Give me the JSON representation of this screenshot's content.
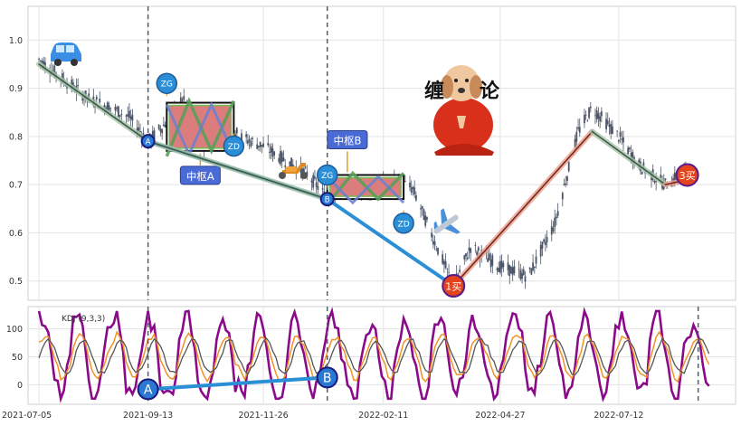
{
  "chart_data": [
    {
      "type": "candlestick",
      "title": "",
      "xlabel": "",
      "ylabel": "",
      "ylim": [
        0.46,
        1.07
      ],
      "y_ticks": [
        "0.5",
        "0.6",
        "0.7",
        "0.8",
        "0.9",
        "1.0"
      ],
      "x_tick_labels": [
        "2021-07-05",
        "2021-09-13",
        "2021-11-26",
        "2022-02-11",
        "2022-04-27",
        "2022-07-12"
      ],
      "x_range": [
        "2021-06-28",
        "2022-09-25"
      ],
      "grid": true,
      "price_path": [
        {
          "date": "2021-07-05",
          "value": 0.96
        },
        {
          "date": "2021-07-20",
          "value": 0.92
        },
        {
          "date": "2021-08-05",
          "value": 0.88
        },
        {
          "date": "2021-08-20",
          "value": 0.86
        },
        {
          "date": "2021-09-01",
          "value": 0.84
        },
        {
          "date": "2021-09-13",
          "value": 0.79
        },
        {
          "date": "2021-09-25",
          "value": 0.83
        },
        {
          "date": "2021-10-05",
          "value": 0.88
        },
        {
          "date": "2021-10-18",
          "value": 0.78
        },
        {
          "date": "2021-10-30",
          "value": 0.86
        },
        {
          "date": "2021-11-10",
          "value": 0.8
        },
        {
          "date": "2021-11-26",
          "value": 0.78
        },
        {
          "date": "2021-12-10",
          "value": 0.75
        },
        {
          "date": "2021-12-25",
          "value": 0.72
        },
        {
          "date": "2022-01-06",
          "value": 0.67
        },
        {
          "date": "2022-01-18",
          "value": 0.7
        },
        {
          "date": "2022-01-30",
          "value": 0.69
        },
        {
          "date": "2022-02-11",
          "value": 0.7
        },
        {
          "date": "2022-02-20",
          "value": 0.71
        },
        {
          "date": "2022-03-02",
          "value": 0.69
        },
        {
          "date": "2022-03-20",
          "value": 0.55
        },
        {
          "date": "2022-03-28",
          "value": 0.49
        },
        {
          "date": "2022-04-08",
          "value": 0.57
        },
        {
          "date": "2022-04-27",
          "value": 0.53
        },
        {
          "date": "2022-05-15",
          "value": 0.51
        },
        {
          "date": "2022-06-01",
          "value": 0.62
        },
        {
          "date": "2022-06-16",
          "value": 0.81
        },
        {
          "date": "2022-06-25",
          "value": 0.86
        },
        {
          "date": "2022-07-12",
          "value": 0.8
        },
        {
          "date": "2022-07-25",
          "value": 0.74
        },
        {
          "date": "2022-08-11",
          "value": 0.7
        },
        {
          "date": "2022-08-25",
          "value": 0.73
        }
      ],
      "bi_strokes": [
        {
          "from": {
            "date": "2021-07-05",
            "value": 0.95
          },
          "to": {
            "date": "2021-09-13",
            "value": 0.79
          }
        },
        {
          "from": {
            "date": "2021-09-13",
            "value": 0.79
          },
          "to": {
            "date": "2022-01-06",
            "value": 0.67
          }
        },
        {
          "from": {
            "date": "2022-03-28",
            "value": 0.49
          },
          "to": {
            "date": "2022-06-25",
            "value": 0.81
          }
        },
        {
          "from": {
            "date": "2022-06-25",
            "value": 0.81
          },
          "to": {
            "date": "2022-08-11",
            "value": 0.7
          }
        },
        {
          "from": {
            "date": "2022-08-11",
            "value": 0.7
          },
          "to": {
            "date": "2022-08-25",
            "value": 0.71
          }
        }
      ],
      "segment_strokes": [
        {
          "from": {
            "date": "2021-09-13",
            "value": 0.79
          },
          "to": {
            "date": "2022-01-06",
            "value": 0.67
          }
        },
        {
          "from": {
            "date": "2022-01-06",
            "value": 0.67
          },
          "to": {
            "date": "2022-03-28",
            "value": 0.49
          }
        }
      ],
      "zhongshu": [
        {
          "label": "中枢A",
          "start": "2021-09-25",
          "end": "2021-11-07",
          "zg": 0.87,
          "zd": 0.77
        },
        {
          "label": "中枢B",
          "start": "2022-01-06",
          "end": "2022-02-24",
          "zg": 0.72,
          "zd": 0.67
        }
      ],
      "markers": [
        {
          "text": "ZG",
          "date": "2021-09-25",
          "value": 0.91
        },
        {
          "text": "ZD",
          "date": "2021-11-07",
          "value": 0.78
        },
        {
          "text": "ZG",
          "date": "2022-01-06",
          "value": 0.72
        },
        {
          "text": "ZD",
          "date": "2022-02-24",
          "value": 0.62
        },
        {
          "text": "A",
          "date": "2021-09-13",
          "value": 0.79
        },
        {
          "text": "B",
          "date": "2022-01-06",
          "value": 0.67
        },
        {
          "text": "1买",
          "date": "2022-03-28",
          "value": 0.49
        },
        {
          "text": "3买",
          "date": "2022-08-25",
          "value": 0.72
        }
      ],
      "divergence_lines": [
        "2021-09-13",
        "2022-01-06"
      ],
      "watermark_text": "缠论"
    },
    {
      "type": "line",
      "title": "",
      "legend_text": "KDJ (9,3,3)",
      "ylim": [
        -35,
        140
      ],
      "y_ticks": [
        "0",
        "50",
        "100"
      ],
      "series_colors": {
        "K": "#f29126",
        "D": "#555555",
        "J": "#8a0a8a"
      },
      "divergence_markers": [
        {
          "text": "A",
          "date": "2021-09-13",
          "value": -8
        },
        {
          "text": "B",
          "date": "2022-01-06",
          "value": 13
        }
      ],
      "divergence_lines": [
        "2021-09-13",
        "2022-01-06",
        "2022-09-01"
      ]
    }
  ]
}
